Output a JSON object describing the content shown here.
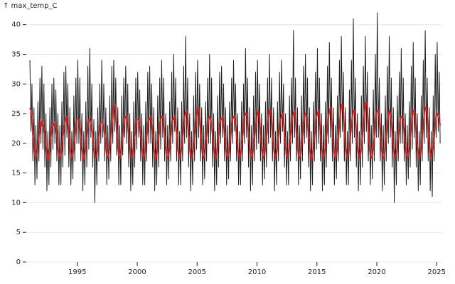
{
  "chart_data": {
    "type": "line",
    "y_label": "↑ max_temp_C",
    "xlim": [
      1990.8,
      2025.4
    ],
    "xticks": [
      1995,
      2000,
      2005,
      2010,
      2015,
      2020,
      2025
    ],
    "ylim": [
      0,
      42
    ],
    "yticks": [
      0,
      5,
      10,
      15,
      20,
      25,
      30,
      35,
      40
    ],
    "grid": true,
    "x": [
      1991.04,
      1991.13,
      1991.21,
      1991.29,
      1991.38,
      1991.46,
      1991.54,
      1991.63,
      1991.71,
      1991.79,
      1991.88,
      1991.96,
      1992.04,
      1992.13,
      1992.21,
      1992.29,
      1992.38,
      1992.46,
      1992.54,
      1992.63,
      1992.71,
      1992.79,
      1992.88,
      1992.96,
      1993.04,
      1993.13,
      1993.21,
      1993.29,
      1993.38,
      1993.46,
      1993.54,
      1993.63,
      1993.71,
      1993.79,
      1993.88,
      1993.96,
      1994.04,
      1994.13,
      1994.21,
      1994.29,
      1994.38,
      1994.46,
      1994.54,
      1994.63,
      1994.71,
      1994.79,
      1994.88,
      1994.96,
      1995.04,
      1995.13,
      1995.21,
      1995.29,
      1995.38,
      1995.46,
      1995.54,
      1995.63,
      1995.71,
      1995.79,
      1995.88,
      1995.96,
      1996.04,
      1996.13,
      1996.21,
      1996.29,
      1996.38,
      1996.46,
      1996.54,
      1996.63,
      1996.71,
      1996.79,
      1996.88,
      1996.96,
      1997.04,
      1997.13,
      1997.21,
      1997.29,
      1997.38,
      1997.46,
      1997.54,
      1997.63,
      1997.71,
      1997.79,
      1997.88,
      1997.96,
      1998.04,
      1998.13,
      1998.21,
      1998.29,
      1998.38,
      1998.46,
      1998.54,
      1998.63,
      1998.71,
      1998.79,
      1998.88,
      1998.96,
      1999.04,
      1999.13,
      1999.21,
      1999.29,
      1999.38,
      1999.46,
      1999.54,
      1999.63,
      1999.71,
      1999.79,
      1999.88,
      1999.96,
      2000.04,
      2000.13,
      2000.21,
      2000.29,
      2000.38,
      2000.46,
      2000.54,
      2000.63,
      2000.71,
      2000.79,
      2000.88,
      2000.96,
      2001.04,
      2001.13,
      2001.21,
      2001.29,
      2001.38,
      2001.46,
      2001.54,
      2001.63,
      2001.71,
      2001.79,
      2001.88,
      2001.96,
      2002.04,
      2002.13,
      2002.21,
      2002.29,
      2002.38,
      2002.46,
      2002.54,
      2002.63,
      2002.71,
      2002.79,
      2002.88,
      2002.96,
      2003.04,
      2003.13,
      2003.21,
      2003.29,
      2003.38,
      2003.46,
      2003.54,
      2003.63,
      2003.71,
      2003.79,
      2003.88,
      2003.96,
      2004.04,
      2004.13,
      2004.21,
      2004.29,
      2004.38,
      2004.46,
      2004.54,
      2004.63,
      2004.71,
      2004.79,
      2004.88,
      2004.96,
      2005.04,
      2005.13,
      2005.21,
      2005.29,
      2005.38,
      2005.46,
      2005.54,
      2005.63,
      2005.71,
      2005.79,
      2005.88,
      2005.96,
      2006.04,
      2006.13,
      2006.21,
      2006.29,
      2006.38,
      2006.46,
      2006.54,
      2006.63,
      2006.71,
      2006.79,
      2006.88,
      2006.96,
      2007.04,
      2007.13,
      2007.21,
      2007.29,
      2007.38,
      2007.46,
      2007.54,
      2007.63,
      2007.71,
      2007.79,
      2007.88,
      2007.96,
      2008.04,
      2008.13,
      2008.21,
      2008.29,
      2008.38,
      2008.46,
      2008.54,
      2008.63,
      2008.71,
      2008.79,
      2008.88,
      2008.96,
      2009.04,
      2009.13,
      2009.21,
      2009.29,
      2009.38,
      2009.46,
      2009.54,
      2009.63,
      2009.71,
      2009.79,
      2009.88,
      2009.96,
      2010.04,
      2010.13,
      2010.21,
      2010.29,
      2010.38,
      2010.46,
      2010.54,
      2010.63,
      2010.71,
      2010.79,
      2010.88,
      2010.96,
      2011.04,
      2011.13,
      2011.21,
      2011.29,
      2011.38,
      2011.46,
      2011.54,
      2011.63,
      2011.71,
      2011.79,
      2011.88,
      2011.96,
      2012.04,
      2012.13,
      2012.21,
      2012.29,
      2012.38,
      2012.46,
      2012.54,
      2012.63,
      2012.71,
      2012.79,
      2012.88,
      2012.96,
      2013.04,
      2013.13,
      2013.21,
      2013.29,
      2013.38,
      2013.46,
      2013.54,
      2013.63,
      2013.71,
      2013.79,
      2013.88,
      2013.96,
      2014.04,
      2014.13,
      2014.21,
      2014.29,
      2014.38,
      2014.46,
      2014.54,
      2014.63,
      2014.71,
      2014.79,
      2014.88,
      2014.96,
      2015.04,
      2015.13,
      2015.21,
      2015.29,
      2015.38,
      2015.46,
      2015.54,
      2015.63,
      2015.71,
      2015.79,
      2015.88,
      2015.96,
      2016.04,
      2016.13,
      2016.21,
      2016.29,
      2016.38,
      2016.46,
      2016.54,
      2016.63,
      2016.71,
      2016.79,
      2016.88,
      2016.96,
      2017.04,
      2017.13,
      2017.21,
      2017.29,
      2017.38,
      2017.46,
      2017.54,
      2017.63,
      2017.71,
      2017.79,
      2017.88,
      2017.96,
      2018.04,
      2018.13,
      2018.21,
      2018.29,
      2018.38,
      2018.46,
      2018.54,
      2018.63,
      2018.71,
      2018.79,
      2018.88,
      2018.96,
      2019.04,
      2019.13,
      2019.21,
      2019.29,
      2019.38,
      2019.46,
      2019.54,
      2019.63,
      2019.71,
      2019.79,
      2019.88,
      2019.96,
      2020.04,
      2020.13,
      2020.21,
      2020.29,
      2020.38,
      2020.46,
      2020.54,
      2020.63,
      2020.71,
      2020.79,
      2020.88,
      2020.96,
      2021.04,
      2021.13,
      2021.21,
      2021.29,
      2021.38,
      2021.46,
      2021.54,
      2021.63,
      2021.71,
      2021.79,
      2021.88,
      2021.96,
      2022.04,
      2022.13,
      2022.21,
      2022.29,
      2022.38,
      2022.46,
      2022.54,
      2022.63,
      2022.71,
      2022.79,
      2022.88,
      2022.96,
      2023.04,
      2023.13,
      2023.21,
      2023.29,
      2023.38,
      2023.46,
      2023.54,
      2023.63,
      2023.71,
      2023.79,
      2023.88,
      2023.96,
      2024.04,
      2024.13,
      2024.21,
      2024.29,
      2024.38,
      2024.46,
      2024.54,
      2024.63,
      2024.71,
      2024.79,
      2024.88,
      2024.96,
      2025.04,
      2025.13,
      2025.21,
      2025.29
    ],
    "series": [
      {
        "color": "#1e1e1e",
        "values": [
          34,
          22,
          30,
          17,
          26,
          13,
          23,
          14,
          27,
          17,
          31,
          20,
          33,
          19,
          30,
          16,
          25,
          12,
          22,
          13,
          26,
          16,
          30,
          19,
          31,
          20,
          29,
          17,
          25,
          13,
          23,
          13,
          27,
          16,
          32,
          18,
          33,
          21,
          30,
          16,
          26,
          13,
          22,
          14,
          28,
          17,
          31,
          20,
          34,
          20,
          31,
          17,
          25,
          12,
          22,
          13,
          27,
          16,
          33,
          19,
          36,
          21,
          30,
          16,
          24,
          10,
          22,
          13,
          26,
          17,
          30,
          20,
          34,
          21,
          30,
          17,
          26,
          13,
          23,
          14,
          28,
          17,
          33,
          20,
          34,
          22,
          31,
          18,
          26,
          13,
          23,
          13,
          28,
          18,
          31,
          21,
          33,
          20,
          30,
          16,
          25,
          12,
          22,
          13,
          27,
          16,
          31,
          19,
          32,
          21,
          29,
          17,
          25,
          13,
          23,
          13,
          27,
          17,
          32,
          20,
          33,
          20,
          30,
          16,
          26,
          12,
          22,
          13,
          28,
          16,
          31,
          19,
          34,
          21,
          31,
          17,
          25,
          13,
          23,
          14,
          27,
          17,
          32,
          20,
          35,
          22,
          31,
          17,
          26,
          13,
          22,
          13,
          27,
          17,
          33,
          20,
          38,
          21,
          31,
          16,
          25,
          12,
          22,
          13,
          28,
          17,
          32,
          19,
          34,
          21,
          30,
          17,
          26,
          13,
          23,
          14,
          27,
          17,
          31,
          20,
          35,
          20,
          31,
          16,
          25,
          12,
          22,
          13,
          28,
          16,
          32,
          20,
          33,
          21,
          30,
          17,
          26,
          13,
          23,
          14,
          27,
          17,
          31,
          20,
          34,
          22,
          30,
          17,
          25,
          13,
          22,
          13,
          27,
          17,
          30,
          20,
          36,
          21,
          31,
          16,
          26,
          12,
          23,
          13,
          28,
          17,
          32,
          19,
          34,
          20,
          30,
          17,
          25,
          13,
          23,
          14,
          27,
          16,
          31,
          20,
          35,
          21,
          31,
          17,
          26,
          12,
          22,
          13,
          27,
          17,
          32,
          20,
          34,
          22,
          30,
          16,
          25,
          13,
          22,
          13,
          28,
          17,
          31,
          20,
          39,
          21,
          31,
          17,
          26,
          13,
          23,
          14,
          28,
          17,
          33,
          20,
          35,
          21,
          31,
          16,
          26,
          12,
          22,
          13,
          27,
          17,
          32,
          19,
          36,
          20,
          31,
          17,
          25,
          12,
          23,
          13,
          27,
          16,
          33,
          20,
          37,
          21,
          31,
          17,
          26,
          13,
          23,
          14,
          28,
          17,
          34,
          21,
          38,
          22,
          32,
          17,
          26,
          13,
          22,
          13,
          29,
          17,
          34,
          20,
          41,
          21,
          31,
          16,
          25,
          12,
          22,
          13,
          28,
          16,
          33,
          20,
          38,
          22,
          32,
          17,
          26,
          13,
          23,
          14,
          29,
          17,
          35,
          21,
          42,
          21,
          31,
          17,
          25,
          12,
          23,
          13,
          28,
          17,
          33,
          20,
          38,
          21,
          31,
          16,
          26,
          10,
          22,
          13,
          28,
          17,
          32,
          20,
          36,
          20,
          31,
          17,
          25,
          13,
          23,
          14,
          27,
          16,
          33,
          19,
          37,
          21,
          31,
          16,
          25,
          12,
          22,
          13,
          28,
          17,
          34,
          20,
          39,
          21,
          31,
          17,
          26,
          12,
          22,
          11,
          28,
          17,
          35,
          21,
          37,
          22,
          32,
          20
        ]
      },
      {
        "color": "#d62020",
        "values": [
          26,
          25.5,
          24.5,
          21.5,
          19.5,
          18,
          17.5,
          18,
          19.5,
          21,
          22.5,
          24,
          23,
          23.5,
          22.5,
          21.5,
          19.5,
          18,
          17,
          18,
          19.5,
          21,
          22.5,
          23,
          23,
          23.5,
          22.5,
          21.5,
          19.5,
          18,
          17.5,
          18,
          19.5,
          21,
          22.5,
          23.5,
          24,
          24.5,
          23.5,
          21.5,
          19.5,
          18,
          17.5,
          18,
          19.5,
          21,
          22.5,
          24,
          24,
          24,
          23,
          21.5,
          19.5,
          18,
          17,
          18,
          19.5,
          21,
          22.5,
          24,
          24,
          23.5,
          22.5,
          21.5,
          19.5,
          18,
          17.5,
          18,
          19.5,
          21,
          22.5,
          23.5,
          23.5,
          23.5,
          22.5,
          21.5,
          19.5,
          18,
          17.5,
          18,
          19.5,
          21,
          22.5,
          24,
          26,
          26.5,
          25.5,
          22,
          19.5,
          18,
          17.5,
          18,
          19.5,
          21,
          22.5,
          24,
          24.5,
          24.5,
          23.5,
          21.5,
          19.5,
          18,
          17.5,
          18,
          19.5,
          21,
          22.5,
          24,
          24,
          24,
          23,
          21.5,
          19.5,
          18,
          17.5,
          18,
          19.5,
          21,
          22.5,
          24,
          24,
          24.5,
          23.5,
          21.5,
          19.5,
          18,
          17,
          18,
          19.5,
          21,
          22.5,
          24,
          24.5,
          24.5,
          23.5,
          21.5,
          19.5,
          18,
          17.5,
          18,
          19.5,
          21,
          22.5,
          24,
          24,
          24.5,
          23.5,
          21.5,
          19.5,
          18,
          17.5,
          18,
          19.5,
          21,
          22.5,
          24.5,
          25,
          25.5,
          24.5,
          21.5,
          19.5,
          18,
          17.5,
          18,
          19.5,
          21,
          22.5,
          24.5,
          25.5,
          26,
          25,
          22,
          19.5,
          18,
          17.5,
          18,
          19.5,
          21,
          22.5,
          24,
          24.5,
          24,
          23,
          21.5,
          19.5,
          18,
          17.5,
          18,
          19.5,
          21,
          22.5,
          24,
          24,
          24.5,
          23.5,
          21.5,
          19.5,
          18,
          17.5,
          18,
          19.5,
          21,
          22.5,
          24,
          24.5,
          24.5,
          23.5,
          21.5,
          19.5,
          18,
          17.5,
          18,
          19.5,
          21,
          22.5,
          24.5,
          25,
          25,
          24,
          21.5,
          19.5,
          18,
          17.5,
          18,
          19.5,
          21,
          22.5,
          24.5,
          25,
          25.5,
          24.5,
          21.5,
          19.5,
          18,
          17.5,
          18,
          19.5,
          21,
          22.5,
          24.5,
          25.5,
          25.5,
          24.5,
          21.5,
          19.5,
          18,
          17.5,
          18,
          19.5,
          21,
          22.5,
          24,
          24.5,
          25,
          24,
          21.5,
          19.5,
          18,
          17.5,
          18,
          19.5,
          21,
          22.5,
          24.5,
          25,
          25.5,
          24.5,
          21.5,
          19.5,
          18,
          17.5,
          18,
          19.5,
          21,
          22.5,
          24.5,
          25,
          24.5,
          23.5,
          21.5,
          19.5,
          18,
          17,
          18,
          19.5,
          21,
          22.5,
          24.5,
          25,
          25.5,
          24.5,
          21.5,
          19.5,
          18,
          17.5,
          18,
          19.5,
          21,
          22.5,
          24.5,
          25.5,
          26,
          25,
          22,
          19.5,
          18,
          17.5,
          18,
          19.5,
          21,
          23,
          25,
          26.5,
          26.5,
          25.5,
          22,
          19.5,
          18,
          17.5,
          18,
          19.5,
          21,
          23,
          24.5,
          25.5,
          25.5,
          24.5,
          21.5,
          19.5,
          18,
          17.5,
          18,
          19.5,
          21,
          23,
          25,
          26.5,
          27,
          26,
          22,
          19.5,
          18,
          17.5,
          18,
          19.5,
          21,
          23,
          25,
          25.5,
          25.5,
          24.5,
          21.5,
          19.5,
          18,
          17.5,
          18,
          19.5,
          21,
          23,
          24.5,
          25.5,
          25,
          24,
          21.5,
          19.5,
          18,
          17.5,
          18,
          19.5,
          21,
          22.5,
          24,
          24.5,
          24.5,
          23.5,
          21.5,
          19.5,
          18,
          17.5,
          18,
          19.5,
          21,
          23,
          24.5,
          25.5,
          25.5,
          24.5,
          21.5,
          19.5,
          18,
          17.5,
          18,
          19.5,
          21,
          23,
          25,
          26,
          26,
          25,
          22,
          19.5,
          18,
          17.5,
          18.5,
          19.5,
          21,
          23,
          25,
          25,
          24.5,
          24,
          23
        ]
      }
    ]
  }
}
